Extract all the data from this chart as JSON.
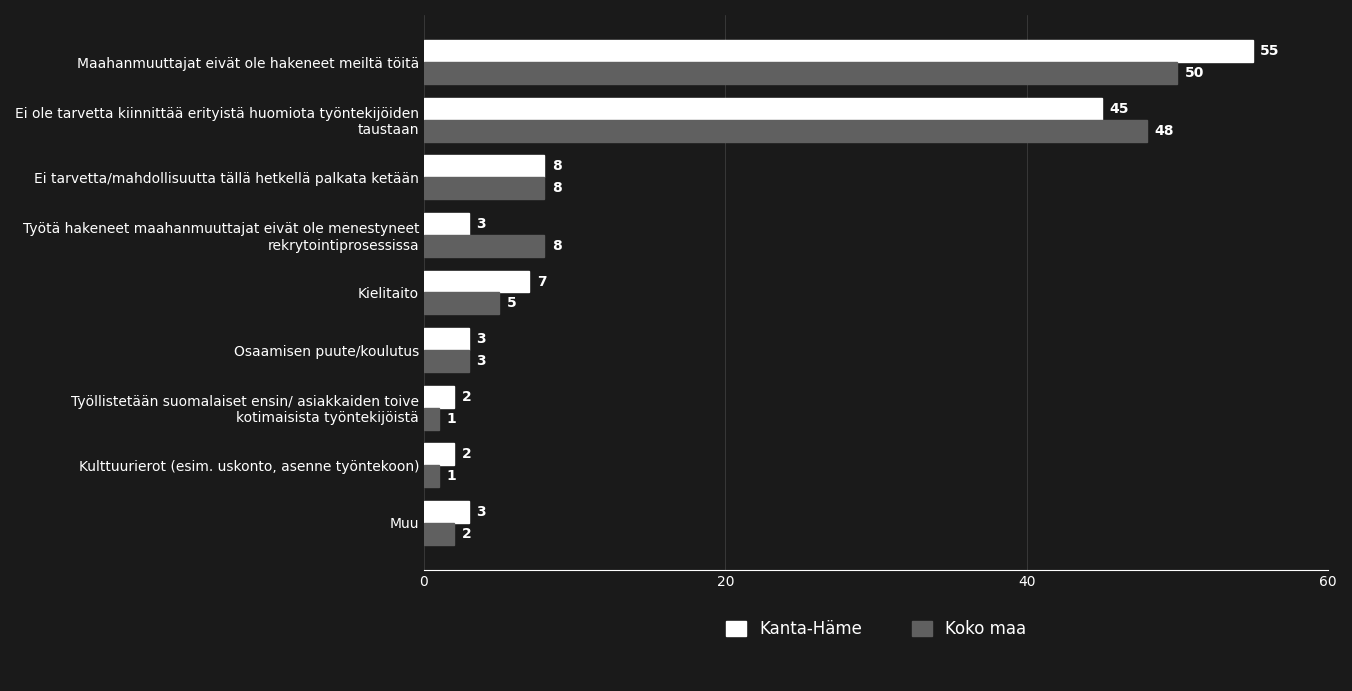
{
  "categories": [
    "Maahanmuuttajat eivät ole hakeneet meiltä töitä",
    "Ei ole tarvetta kiinnittää erityistä huomiota työntekijöiden\ntaustaan",
    "Ei tarvetta/mahdollisuutta tällä hetkellä palkata ketään",
    "Työtä hakeneet maahanmuuttajat eivät ole menestyneet\nrekrytointiprosessissa",
    "Kielitaito",
    "Osaamisen puute/koulutus",
    "Työllistetään suomalaiset ensin/ asiakkaiden toive\nkotimaisista työntekijöistä",
    "Kulttuurierot (esim. uskonto, asenne työntekoon)",
    "Muu"
  ],
  "kanta_hame": [
    55,
    45,
    8,
    3,
    7,
    3,
    2,
    2,
    3
  ],
  "koko_maa": [
    50,
    48,
    8,
    8,
    5,
    3,
    1,
    1,
    2
  ],
  "kanta_hame_color": "#ffffff",
  "koko_maa_color": "#606060",
  "background_color": "#1a1a1a",
  "text_color": "#ffffff",
  "xlim": [
    0,
    60
  ],
  "xticks": [
    0,
    20,
    40,
    60
  ],
  "bar_height": 0.38,
  "legend_labels": [
    "Kanta-Häme",
    "Koko maa"
  ],
  "value_fontsize": 10,
  "label_fontsize": 10
}
